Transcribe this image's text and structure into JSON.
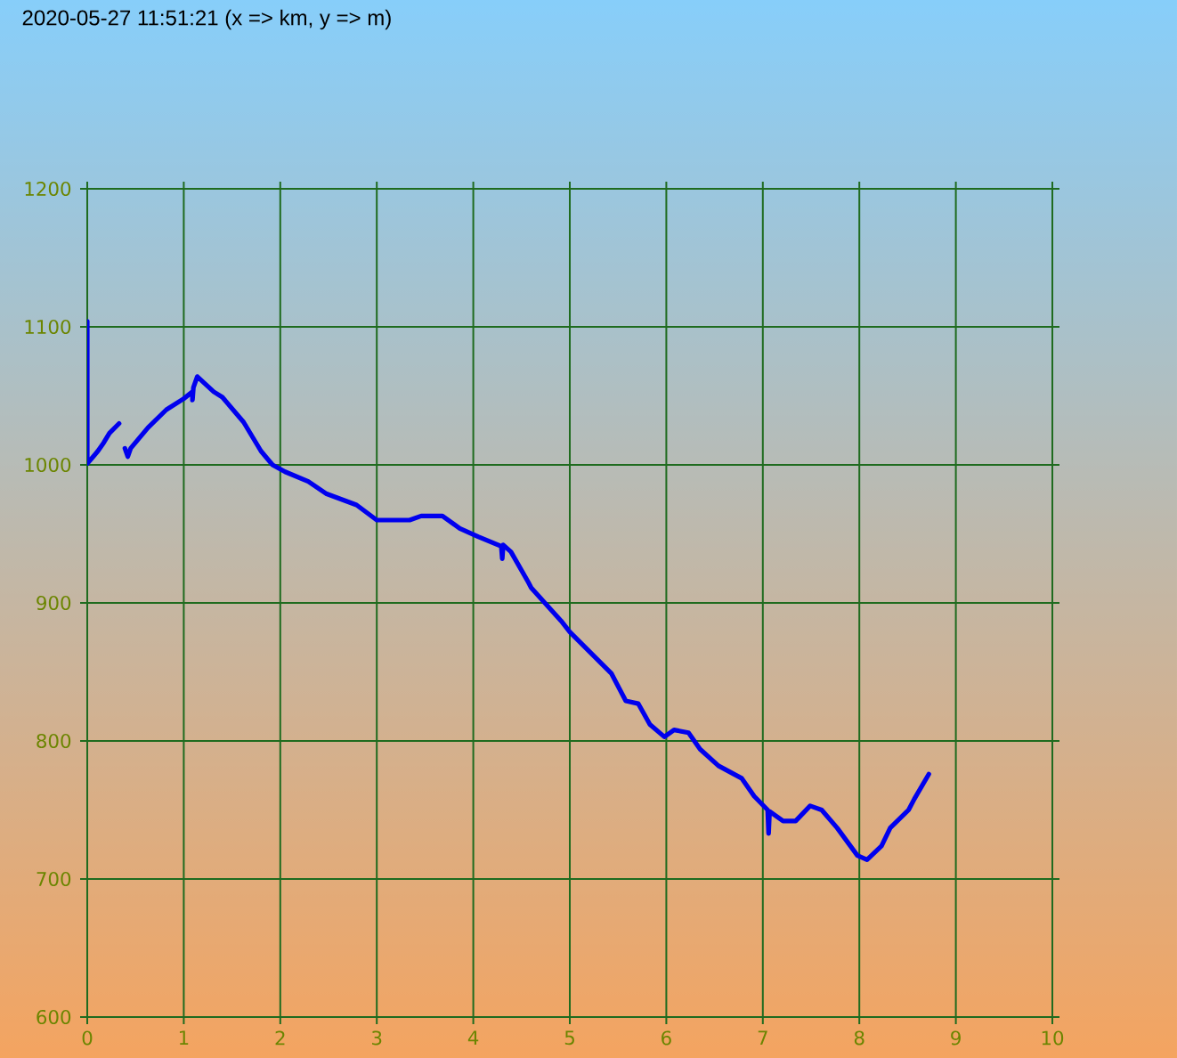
{
  "chart_data": {
    "type": "line",
    "title": "2020-05-27 11:51:21 (x => km, y => m)",
    "x": [
      0,
      0,
      0.05,
      0.11,
      0.17,
      0.23,
      0.33,
      0.36,
      0.39,
      0.42,
      0.45,
      0.63,
      0.82,
      1.0,
      1.09,
      1.09,
      1.1,
      1.14,
      1.31,
      1.4,
      1.62,
      1.8,
      1.92,
      2.05,
      2.29,
      2.48,
      2.79,
      3.0,
      3.34,
      3.46,
      3.68,
      3.86,
      4.05,
      4.29,
      4.3,
      4.31,
      4.39,
      4.57,
      4.6,
      4.91,
      5.0,
      5.43,
      5.58,
      5.71,
      5.83,
      5.98,
      6.08,
      6.23,
      6.35,
      6.54,
      6.78,
      6.91,
      7.05,
      7.06,
      7.07,
      7.21,
      7.34,
      7.49,
      7.61,
      7.77,
      7.98,
      8.08,
      8.23,
      8.32,
      8.51,
      8.57,
      8.72
    ],
    "series": [
      {
        "color": "#0000ee",
        "values": [
          1104,
          1001,
          1005,
          1010,
          1016,
          1023,
          1030,
          null,
          1012,
          1006,
          1012,
          1027,
          1040,
          1048,
          1053,
          1047,
          1056,
          1064,
          1053,
          1049,
          1031,
          1010,
          1000,
          995,
          988,
          979,
          971,
          960,
          960,
          963,
          963,
          954,
          948,
          941,
          932,
          942,
          937,
          915,
          911,
          887,
          879,
          849,
          829,
          827,
          812,
          803,
          808,
          806,
          794,
          782,
          773,
          760,
          750,
          733,
          749,
          742,
          742,
          753,
          750,
          737,
          717,
          714,
          724,
          737,
          750,
          758,
          776
        ]
      }
    ],
    "xlim": [
      0,
      10
    ],
    "ylim": [
      600,
      1200
    ],
    "xticks": [
      0,
      1,
      2,
      3,
      4,
      5,
      6,
      7,
      8,
      9,
      10
    ],
    "yticks": [
      600,
      700,
      800,
      900,
      1000,
      1100,
      1200
    ],
    "grid": true,
    "legend": false,
    "marker": "none",
    "line_style": "solid"
  }
}
